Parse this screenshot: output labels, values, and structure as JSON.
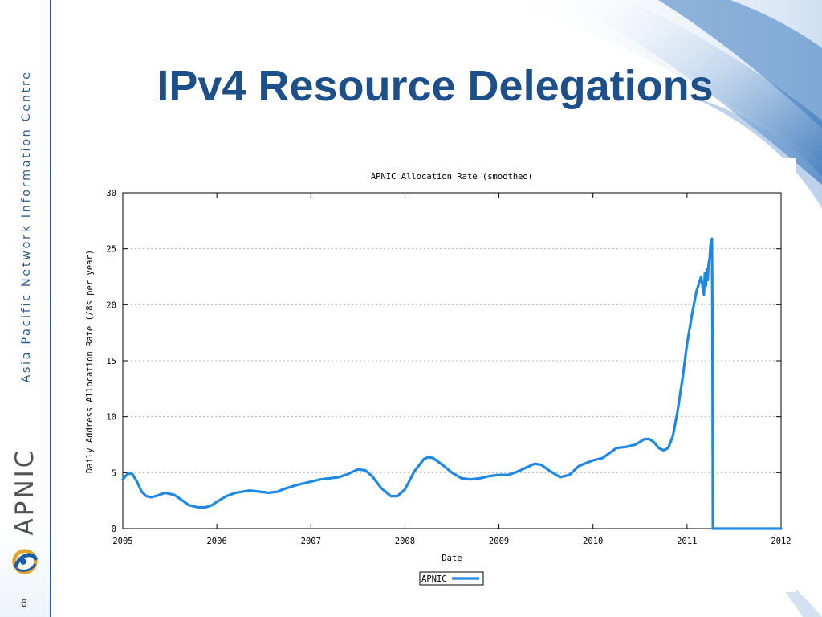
{
  "slide": {
    "title": "IPv4 Resource Delegations",
    "page_number": "6",
    "org_name": "Asia Pacific Network Information Centre",
    "brand": "APNIC"
  },
  "colors": {
    "title": "#1d4f8a",
    "series": "#1e88e5",
    "sidebar_rule": "#1c5ea6",
    "grid": "#b4b4b4"
  },
  "icons": {
    "logo": "apnic-swirl-logo-icon",
    "background": "blue-swirl-decoration"
  },
  "chart_data": {
    "type": "line",
    "title": "APNIC Allocation Rate (smoothed(",
    "xlabel": "Date",
    "ylabel": "Daily Address Allocation Rate (/8s per year)",
    "xlim": [
      2005,
      2012
    ],
    "ylim": [
      0,
      30
    ],
    "x_ticks": [
      "2005",
      "2006",
      "2007",
      "2008",
      "2009",
      "2010",
      "2011",
      "2012"
    ],
    "y_ticks": [
      "0",
      "5",
      "10",
      "15",
      "20",
      "25",
      "30"
    ],
    "grid": "horizontal dashed",
    "legend_position": "bottom-center",
    "series": [
      {
        "name": "APNIC",
        "x": [
          2005.0,
          2005.05,
          2005.1,
          2005.15,
          2005.2,
          2005.25,
          2005.3,
          2005.35,
          2005.45,
          2005.55,
          2005.62,
          2005.7,
          2005.8,
          2005.88,
          2005.95,
          2006.0,
          2006.1,
          2006.2,
          2006.35,
          2006.45,
          2006.55,
          2006.65,
          2006.7,
          2006.85,
          2007.0,
          2007.1,
          2007.2,
          2007.3,
          2007.4,
          2007.5,
          2007.58,
          2007.65,
          2007.75,
          2007.85,
          2007.92,
          2008.0,
          2008.1,
          2008.2,
          2008.25,
          2008.3,
          2008.4,
          2008.5,
          2008.6,
          2008.7,
          2008.8,
          2008.9,
          2009.0,
          2009.1,
          2009.2,
          2009.3,
          2009.38,
          2009.45,
          2009.55,
          2009.65,
          2009.75,
          2009.85,
          2010.0,
          2010.1,
          2010.2,
          2010.25,
          2010.35,
          2010.45,
          2010.55,
          2010.6,
          2010.65,
          2010.7,
          2010.75,
          2010.8,
          2010.85,
          2010.9,
          2010.95,
          2011.0,
          2011.05,
          2011.1,
          2011.15,
          2011.18,
          2011.19,
          2011.2,
          2011.21,
          2011.22,
          2011.23,
          2011.24,
          2011.25,
          2011.265,
          2011.27,
          2011.275,
          2011.28,
          2011.3,
          2011.5,
          2011.8,
          2012.0
        ],
        "values": [
          4.4,
          4.9,
          4.9,
          4.2,
          3.3,
          2.9,
          2.8,
          2.9,
          3.2,
          3.0,
          2.6,
          2.1,
          1.9,
          1.9,
          2.1,
          2.4,
          2.9,
          3.2,
          3.4,
          3.3,
          3.2,
          3.3,
          3.5,
          3.9,
          4.2,
          4.4,
          4.5,
          4.6,
          4.9,
          5.3,
          5.2,
          4.7,
          3.6,
          2.9,
          2.9,
          3.5,
          5.1,
          6.2,
          6.4,
          6.3,
          5.7,
          5.0,
          4.5,
          4.4,
          4.5,
          4.7,
          4.8,
          4.8,
          5.1,
          5.5,
          5.8,
          5.7,
          5.1,
          4.6,
          4.8,
          5.6,
          6.1,
          6.3,
          6.9,
          7.2,
          7.3,
          7.5,
          8.0,
          8.0,
          7.7,
          7.2,
          7.0,
          7.2,
          8.3,
          10.5,
          13.3,
          16.5,
          19.0,
          21.2,
          22.5,
          20.9,
          22.8,
          21.7,
          23.2,
          22.2,
          23.7,
          24.1,
          25.3,
          25.9,
          18.8,
          0.0,
          0.0,
          0.0,
          0.0,
          0.0,
          0.0
        ]
      }
    ]
  }
}
